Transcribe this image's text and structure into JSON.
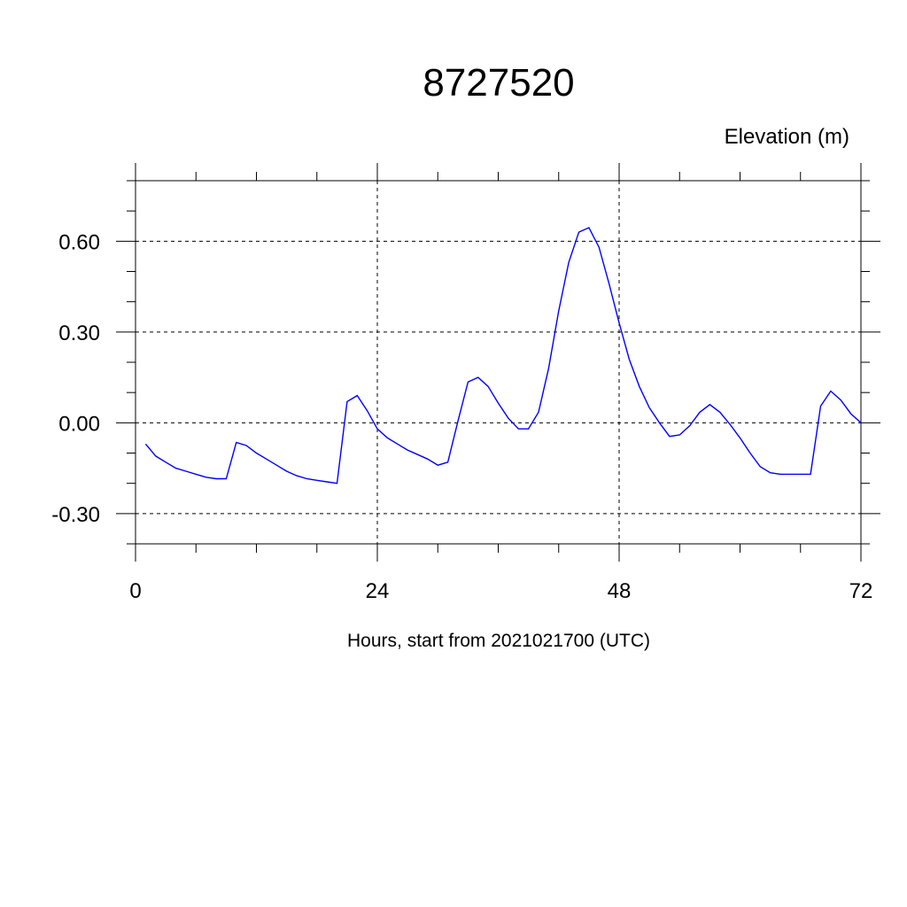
{
  "chart_data": {
    "type": "line",
    "title": "8727520",
    "ylabel": "Elevation (m)",
    "xlabel": "Hours, start from 2021021700 (UTC)",
    "xlim": [
      0,
      72
    ],
    "ylim": [
      -0.4,
      0.8
    ],
    "x_ticks": [
      0,
      24,
      48,
      72
    ],
    "x_tick_labels": [
      "0",
      "24",
      "48",
      "72"
    ],
    "y_ticks": [
      -0.3,
      0.0,
      0.3,
      0.6
    ],
    "y_tick_labels": [
      "-0.30",
      "0.00",
      "0.30",
      "0.60"
    ],
    "grid": true,
    "series": [
      {
        "color": "#0000ff",
        "x": [
          1,
          2,
          3,
          4,
          5,
          6,
          7,
          8,
          9,
          10,
          11,
          12,
          13,
          14,
          15,
          16,
          17,
          18,
          19,
          20,
          21,
          22,
          23,
          24,
          25,
          26,
          27,
          28,
          29,
          30,
          31,
          32,
          33,
          34,
          35,
          36,
          37,
          38,
          39,
          40,
          41,
          42,
          43,
          44,
          45,
          46,
          47,
          48,
          49,
          50,
          51,
          52,
          53,
          54,
          55,
          56,
          57,
          58,
          59,
          60,
          61,
          62,
          63,
          64,
          65,
          66,
          67,
          68,
          69,
          70,
          71,
          72
        ],
        "y": [
          -0.07,
          -0.11,
          -0.13,
          -0.15,
          -0.16,
          -0.17,
          -0.18,
          -0.185,
          -0.185,
          -0.065,
          -0.075,
          -0.1,
          -0.12,
          -0.14,
          -0.16,
          -0.175,
          -0.185,
          -0.19,
          -0.195,
          -0.2,
          0.07,
          0.09,
          0.04,
          -0.02,
          -0.05,
          -0.07,
          -0.09,
          -0.105,
          -0.12,
          -0.14,
          -0.13,
          0.005,
          0.135,
          0.15,
          0.12,
          0.065,
          0.015,
          -0.02,
          -0.02,
          0.035,
          0.18,
          0.37,
          0.53,
          0.63,
          0.645,
          0.58,
          0.46,
          0.33,
          0.21,
          0.12,
          0.05,
          0.0,
          -0.045,
          -0.04,
          -0.01,
          0.035,
          0.06,
          0.035,
          -0.005,
          -0.05,
          -0.1,
          -0.145,
          -0.165,
          -0.17,
          -0.17,
          -0.17,
          -0.17,
          0.055,
          0.105,
          0.075,
          0.03,
          0.0
        ]
      }
    ]
  }
}
